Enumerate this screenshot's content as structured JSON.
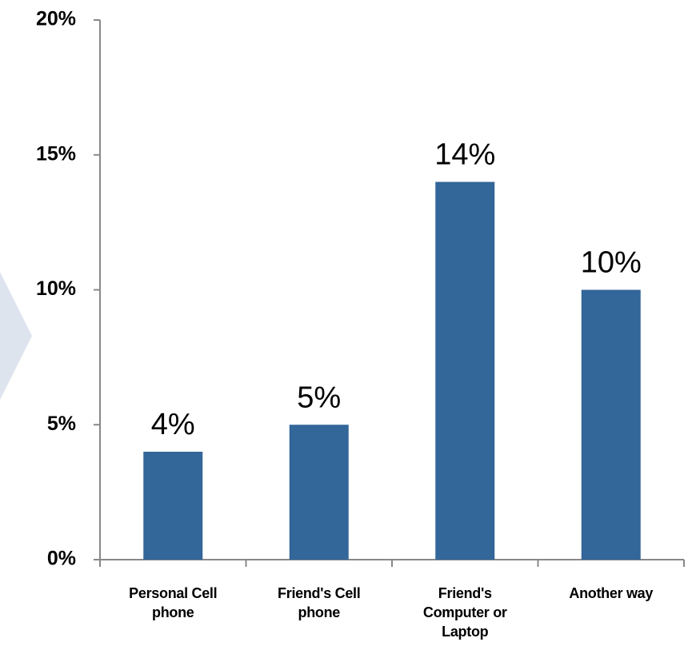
{
  "chart_data": {
    "type": "bar",
    "categories": [
      "Personal Cell phone",
      "Friend's Cell phone",
      "Friend's Computer or Laptop",
      "Another way"
    ],
    "values": [
      4,
      5,
      14,
      10
    ],
    "value_labels": [
      "4%",
      "5%",
      "14%",
      "10%"
    ],
    "color": "#336699",
    "ylim": [
      0,
      20
    ],
    "yticks": [
      {
        "value": 0,
        "label": "0%"
      },
      {
        "value": 5,
        "label": "5%"
      },
      {
        "value": 10,
        "label": "10%"
      },
      {
        "value": 15,
        "label": "15%"
      },
      {
        "value": 20,
        "label": "20%"
      }
    ],
    "grid": false
  }
}
